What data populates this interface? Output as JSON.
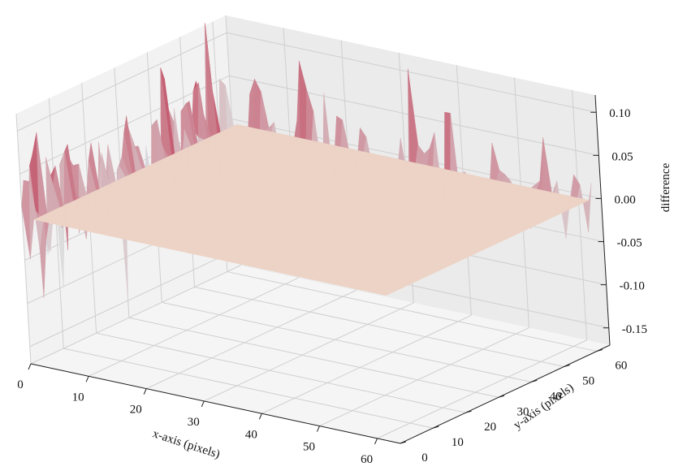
{
  "chart_data": {
    "type": "surface",
    "xlabel": "x-axis (pixels)",
    "ylabel": "y-axis (pixels)",
    "zlabel": "difference",
    "x_ticks": [
      "0",
      "10",
      "20",
      "30",
      "40",
      "50",
      "60"
    ],
    "y_ticks": [
      "0",
      "10",
      "20",
      "30",
      "40",
      "50",
      "60"
    ],
    "z_ticks": [
      "-0.15",
      "-0.10",
      "-0.05",
      "0.00",
      "0.05",
      "0.10"
    ],
    "xlim": [
      0,
      64
    ],
    "ylim": [
      0,
      64
    ],
    "zlim": [
      -0.17,
      0.12
    ],
    "grid": true,
    "colormap": "coolwarm",
    "colors": {
      "low": "#3b4cc0",
      "mid": "#dddddd",
      "high": "#b40426",
      "plateau": "#ecd3c5"
    },
    "plateau_value": 0.0,
    "features": {
      "surface_extent": {
        "x": [
          0,
          63
        ],
        "y": [
          0,
          63
        ]
      },
      "flat_region": {
        "x": [
          2,
          63
        ],
        "y": [
          0,
          62
        ]
      },
      "noisy_edges": [
        "x near 0",
        "y near 63"
      ],
      "peak": {
        "x": 1,
        "y": 42,
        "z": 0.1
      },
      "trough": {
        "x": 0,
        "y": 30,
        "z": -0.15
      },
      "value_range": [
        -0.16,
        0.1
      ]
    }
  }
}
